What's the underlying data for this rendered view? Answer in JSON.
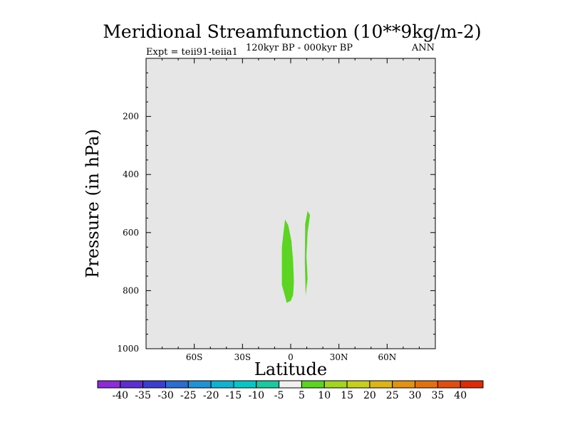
{
  "chart_data": {
    "type": "contour",
    "title": "Meridional Streamfunction (10**9kg/m-2)",
    "subtitle_left": "Expt = teii91-teiia1",
    "subtitle_center": "120kyr BP - 000kyr BP",
    "subtitle_right": "ANN",
    "xlabel": "Latitude",
    "ylabel": "Pressure (in hPa)",
    "xlim": [
      -90,
      90
    ],
    "ylim": [
      0,
      1000
    ],
    "y_reversed": true,
    "x_ticks": [
      {
        "value": -60,
        "label": "60S"
      },
      {
        "value": -30,
        "label": "30S"
      },
      {
        "value": 0,
        "label": "0"
      },
      {
        "value": 30,
        "label": "30N"
      },
      {
        "value": 60,
        "label": "60N"
      }
    ],
    "y_ticks": [
      {
        "value": 200,
        "label": "200"
      },
      {
        "value": 400,
        "label": "400"
      },
      {
        "value": 600,
        "label": "600"
      },
      {
        "value": 800,
        "label": "800"
      },
      {
        "value": 1000,
        "label": "1000"
      }
    ],
    "background_fill": "#e6e6e6",
    "regions": [
      {
        "level": "5 to 10",
        "color": "#5bd422",
        "points": [
          [
            -3.5,
            555
          ],
          [
            -1.5,
            575
          ],
          [
            0.5,
            630
          ],
          [
            1.5,
            700
          ],
          [
            2,
            770
          ],
          [
            1.5,
            815
          ],
          [
            0,
            835
          ],
          [
            -2.5,
            842
          ],
          [
            -3.5,
            820
          ],
          [
            -5.5,
            780
          ],
          [
            -5.5,
            650
          ],
          [
            -4.5,
            600
          ]
        ]
      },
      {
        "level": "5 to 10",
        "color": "#5bd422",
        "points": [
          [
            10.5,
            525
          ],
          [
            12,
            540
          ],
          [
            10.5,
            600
          ],
          [
            9.8,
            680
          ],
          [
            10.5,
            760
          ],
          [
            10,
            780
          ],
          [
            9.3,
            818
          ],
          [
            8.8,
            700
          ],
          [
            9,
            570
          ]
        ]
      }
    ],
    "colorbar": {
      "labels": [
        "-40",
        "-35",
        "-30",
        "-25",
        "-20",
        "-15",
        "-10",
        "-5",
        "5",
        "10",
        "15",
        "20",
        "25",
        "30",
        "35",
        "40"
      ],
      "colors": [
        "#8d2bd8",
        "#5e2ecf",
        "#3c3fcd",
        "#2b6dd1",
        "#1e93d5",
        "#0fb2d1",
        "#05c6c5",
        "#19c99f",
        "#f0f0f0",
        "#5bd422",
        "#a2d51e",
        "#c8cf1b",
        "#ddb414",
        "#e2920f",
        "#e2710d",
        "#e14e0c",
        "#df2a08"
      ]
    }
  }
}
